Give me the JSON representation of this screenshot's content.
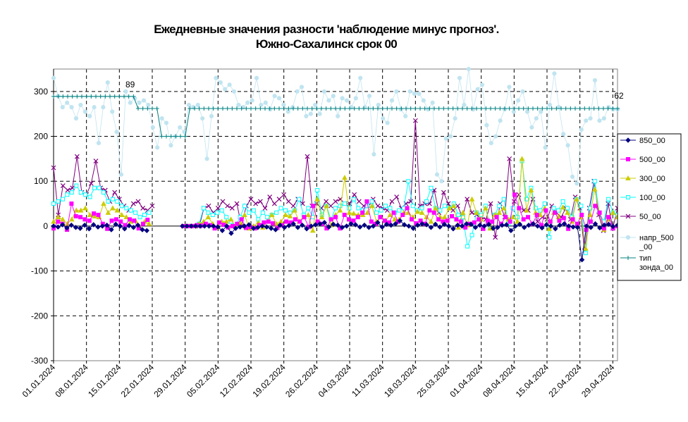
{
  "chart_data": {
    "type": "line",
    "title_line1": "Ежедневные значения разности 'наблюдение минус прогноз'.",
    "title_line2": "Южно-Сахалинск      срок 00",
    "ylim": [
      -300,
      350
    ],
    "yticks": [
      -300,
      -200,
      -100,
      0,
      100,
      200,
      300
    ],
    "x_start": "2024-01-01",
    "x_end": "2024-04-30",
    "xtick_labels": [
      "01.01.2024",
      "08.01.2024",
      "15.01.2024",
      "22.01.2024",
      "29.01.2024",
      "05.02.2024",
      "12.02.2024",
      "19.02.2024",
      "26.02.2024",
      "04.03.2024",
      "11.03.2024",
      "18.03.2024",
      "25.03.2024",
      "01.04.2024",
      "08.04.2024",
      "15.04.2024",
      "22.04.2024",
      "29.04.2024"
    ],
    "grid": true,
    "legend_position": "right",
    "annotations": [
      {
        "text": "89",
        "x": "2024-01-17",
        "y": 300
      },
      {
        "text": "62",
        "x": "2024-04-30",
        "y": 275
      }
    ],
    "series": [
      {
        "name": "850_00",
        "color": "#000080",
        "marker": "diamond",
        "gap": [
          22,
          28
        ],
        "values": [
          0,
          -2,
          3,
          -4,
          2,
          -3,
          -5,
          2,
          -6,
          3,
          -2,
          0,
          2,
          -8,
          4,
          0,
          -6,
          1,
          -3,
          2,
          -8,
          -10,
          -4,
          2,
          -3,
          0,
          -1,
          3,
          1,
          0,
          0,
          0,
          0,
          0,
          0,
          0,
          0,
          -2,
          -10,
          0,
          -16,
          -5,
          -2,
          0,
          3,
          -5,
          -3,
          0,
          -2,
          -5,
          -8,
          2,
          -3,
          1,
          5,
          -3,
          2,
          -6,
          0,
          3,
          5,
          8,
          -2,
          4,
          2,
          -3,
          0,
          5,
          3,
          -2,
          2,
          -3,
          0,
          8,
          -2,
          4,
          2,
          5,
          12,
          3,
          0,
          -5,
          2,
          5,
          3,
          -3,
          4,
          -2,
          4,
          0,
          -6,
          2,
          0,
          5,
          4,
          -3,
          2,
          0,
          4,
          -5,
          -3,
          2,
          3,
          -10,
          0,
          4,
          -3,
          2,
          5,
          0,
          -4,
          3,
          0,
          -6,
          2,
          5,
          0,
          -2,
          -3,
          -75,
          0,
          -3,
          5,
          -4,
          2,
          4,
          -1,
          2
        ]
      },
      {
        "name": "500_00",
        "color": "#FF00FF",
        "marker": "square",
        "gap": [
          22,
          28
        ],
        "values": [
          -5,
          10,
          5,
          -8,
          50,
          22,
          20,
          15,
          12,
          28,
          25,
          5,
          -6,
          12,
          15,
          10,
          2,
          15,
          12,
          -5,
          5,
          14,
          8,
          2,
          18,
          0,
          0,
          0,
          0,
          0,
          0,
          0,
          2,
          1,
          5,
          2,
          -5,
          8,
          3,
          -3,
          0,
          5,
          15,
          -4,
          -2,
          -5,
          2,
          8,
          10,
          6,
          -4,
          2,
          10,
          8,
          15,
          10,
          20,
          -2,
          45,
          10,
          5,
          -5,
          15,
          20,
          -5,
          25,
          15,
          12,
          20,
          30,
          55,
          10,
          5,
          20,
          12,
          8,
          30,
          10,
          25,
          40,
          15,
          6,
          12,
          5,
          35,
          30,
          15,
          10,
          12,
          22,
          15,
          10,
          -3,
          5,
          8,
          15,
          -6,
          12,
          10,
          20,
          5,
          20,
          10,
          70,
          40,
          15,
          20,
          5,
          25,
          2,
          35,
          10,
          30,
          12,
          18,
          -6,
          15,
          5,
          25,
          -8,
          10,
          45,
          30,
          -5,
          20,
          -5,
          0
        ]
      },
      {
        "name": "300_00",
        "color": "#CCCC00",
        "marker": "triangle",
        "gap": [
          22,
          28
        ],
        "values": [
          10,
          20,
          15,
          5,
          15,
          35,
          35,
          40,
          25,
          22,
          20,
          50,
          30,
          40,
          35,
          25,
          20,
          10,
          12,
          -3,
          10,
          5,
          30,
          10,
          30,
          0,
          0,
          0,
          0,
          0,
          0,
          0,
          5,
          10,
          20,
          5,
          -3,
          10,
          10,
          15,
          0,
          8,
          25,
          -5,
          0,
          8,
          -3,
          10,
          25,
          5,
          10,
          25,
          22,
          35,
          10,
          20,
          25,
          -10,
          60,
          20,
          45,
          2,
          25,
          35,
          108,
          30,
          28,
          25,
          25,
          30,
          45,
          10,
          20,
          12,
          25,
          15,
          15,
          30,
          30,
          20,
          32,
          30,
          20,
          10,
          40,
          20,
          20,
          40,
          45,
          -3,
          30,
          2,
          60,
          30,
          15,
          40,
          -5,
          25,
          30,
          40,
          15,
          20,
          10,
          150,
          35,
          80,
          30,
          25,
          40,
          -6,
          30,
          20,
          42,
          30,
          10,
          60,
          20,
          -50,
          25,
          82,
          30,
          -8,
          15,
          30,
          20
        ]
      },
      {
        "name": "100_00",
        "color": "#00FFFF",
        "marker": "square",
        "gap": [
          22,
          28
        ],
        "values": [
          50,
          55,
          60,
          70,
          75,
          90,
          75,
          70,
          65,
          85,
          85,
          75,
          55,
          60,
          55,
          45,
          40,
          35,
          30,
          20,
          25,
          30,
          28,
          30,
          35,
          0,
          0,
          0,
          0,
          0,
          0,
          0,
          5,
          40,
          30,
          25,
          30,
          35,
          20,
          10,
          0,
          20,
          45,
          30,
          35,
          15,
          30,
          20,
          25,
          30,
          40,
          35,
          30,
          35,
          60,
          25,
          40,
          20,
          80,
          25,
          45,
          15,
          40,
          45,
          50,
          40,
          60,
          40,
          35,
          45,
          55,
          30,
          35,
          45,
          40,
          30,
          35,
          40,
          100,
          45,
          35,
          40,
          55,
          85,
          40,
          35,
          45,
          40,
          50,
          25,
          20,
          -45,
          -20,
          30,
          25,
          45,
          -5,
          25,
          45,
          60,
          5,
          40,
          20,
          145,
          60,
          85,
          40,
          35,
          50,
          -25,
          40,
          35,
          55,
          40,
          20,
          60,
          45,
          -60,
          40,
          100,
          30,
          10,
          60,
          30,
          25
        ]
      },
      {
        "name": "50_00",
        "color": "#800080",
        "marker": "cross",
        "gap": [
          22,
          28
        ],
        "values": [
          130,
          25,
          90,
          80,
          85,
          155,
          75,
          70,
          95,
          145,
          85,
          80,
          55,
          75,
          60,
          45,
          35,
          50,
          55,
          40,
          35,
          45,
          50,
          35,
          30,
          0,
          0,
          0,
          0,
          0,
          0,
          0,
          40,
          45,
          30,
          40,
          55,
          45,
          40,
          50,
          0,
          45,
          60,
          50,
          55,
          40,
          65,
          50,
          60,
          70,
          55,
          45,
          60,
          50,
          155,
          45,
          50,
          40,
          55,
          45,
          55,
          60,
          50,
          50,
          70,
          55,
          45,
          45,
          60,
          45,
          40,
          35,
          55,
          65,
          40,
          50,
          55,
          235,
          45,
          50,
          50,
          80,
          30,
          75,
          50,
          35,
          45,
          20,
          60,
          30,
          25,
          20,
          15,
          50,
          -25,
          50,
          20,
          150,
          55,
          70,
          35,
          35,
          60,
          10,
          20,
          15,
          45,
          30,
          20,
          40,
          15,
          65,
          40,
          -55,
          40,
          100,
          25,
          -10,
          50,
          -5,
          40
        ]
      },
      {
        "name": "напр_500_00",
        "color": "#C0E4F0",
        "marker": "circle",
        "gap": [],
        "values": [
          330,
          290,
          265,
          275,
          265,
          240,
          270,
          255,
          245,
          265,
          185,
          265,
          320,
          255,
          210,
          115,
          300,
          275,
          285,
          275,
          280,
          270,
          220,
          175,
          240,
          230,
          180,
          200,
          220,
          210,
          270,
          265,
          270,
          240,
          150,
          245,
          330,
          320,
          305,
          315,
          300,
          270,
          265,
          275,
          280,
          330,
          270,
          275,
          260,
          290,
          285,
          270,
          255,
          265,
          300,
          310,
          245,
          250,
          270,
          250,
          300,
          280,
          290,
          245,
          285,
          280,
          265,
          285,
          330,
          265,
          290,
          160,
          270,
          240,
          230,
          280,
          300,
          260,
          245,
          300,
          295,
          295,
          280,
          260,
          275,
          115,
          100,
          195,
          200,
          240,
          330,
          270,
          350,
          260,
          305,
          315,
          225,
          185,
          200,
          235,
          260,
          310,
          255,
          280,
          300,
          255,
          220,
          240,
          255,
          175,
          270,
          340,
          265,
          205,
          180,
          110,
          95,
          215,
          235,
          240,
          325,
          235,
          240,
          265,
          260,
          260
        ]
      },
      {
        "name": "тип зонда_00",
        "color": "#008080",
        "marker": "plus",
        "gap": [],
        "values": [
          289,
          289,
          289,
          289,
          289,
          289,
          289,
          289,
          289,
          289,
          289,
          289,
          289,
          289,
          289,
          289,
          289,
          289,
          262,
          262,
          262,
          262,
          262,
          200,
          200,
          200,
          200,
          200,
          200,
          262,
          262,
          262,
          262,
          262,
          262,
          262,
          262,
          262,
          262,
          262,
          262,
          262,
          262,
          262,
          262,
          262,
          262,
          262,
          262,
          262,
          262,
          262,
          262,
          262,
          262,
          262,
          262,
          262,
          262,
          262,
          262,
          262,
          262,
          262,
          262,
          262,
          262,
          262,
          262,
          262,
          262,
          262,
          262,
          262,
          262,
          262,
          262,
          262,
          262,
          262,
          262,
          262,
          262,
          262,
          262,
          262,
          262,
          262,
          262,
          262,
          262,
          262,
          262,
          262,
          262,
          262,
          262,
          262,
          262,
          262,
          262,
          262,
          262,
          262,
          262,
          262,
          262,
          262,
          262,
          262,
          262,
          262,
          262,
          262,
          262,
          262,
          262,
          262,
          262,
          262,
          262
        ]
      }
    ]
  },
  "legend": {
    "items": [
      {
        "label": "850_00"
      },
      {
        "label": "500_00"
      },
      {
        "label": "300_00"
      },
      {
        "label": "100_00"
      },
      {
        "label": "50_00"
      },
      {
        "label": "напр_500_00"
      },
      {
        "label": "тип зонда_00"
      }
    ]
  }
}
